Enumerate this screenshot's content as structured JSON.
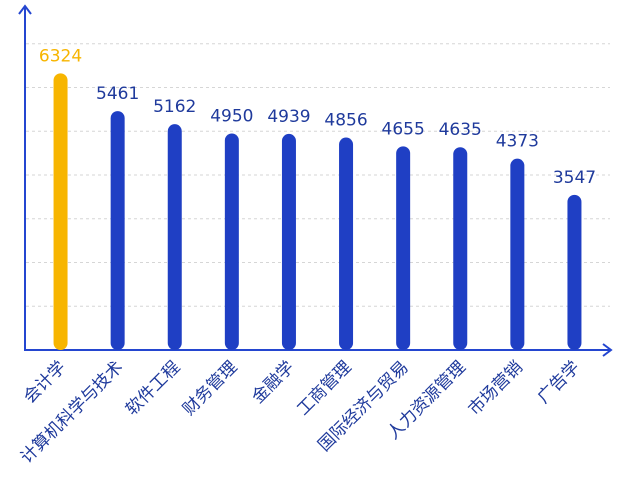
{
  "chart_data": {
    "type": "bar",
    "categories": [
      "会计学",
      "计算机科学与技术",
      "软件工程",
      "财务管理",
      "金融学",
      "工商管理",
      "国际经济与贸易",
      "人力资源管理",
      "市场营销",
      "广告学"
    ],
    "values": [
      6324,
      5461,
      5162,
      4950,
      4939,
      4856,
      4655,
      4635,
      4373,
      3547
    ],
    "colors": [
      "#f7b500",
      "#1f3fc4",
      "#1f3fc4",
      "#1f3fc4",
      "#1f3fc4",
      "#1f3fc4",
      "#1f3fc4",
      "#1f3fc4",
      "#1f3fc4",
      "#1f3fc4"
    ],
    "ylim": [
      0,
      8000
    ],
    "yticks": [
      1000,
      2000,
      3000,
      4000,
      5000,
      6000,
      7000
    ],
    "grid": true
  }
}
